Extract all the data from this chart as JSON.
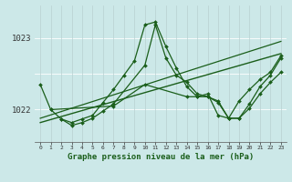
{
  "title": "Graphe pression niveau de la mer (hPa)",
  "bg_color": "#cce8e8",
  "line_color": "#1a5e1a",
  "grid_color": "#ffffff",
  "subgrid_color": "#c8d8d8",
  "ylim": [
    1021.55,
    1023.45
  ],
  "yticks": [
    1022,
    1023
  ],
  "xlim": [
    -0.5,
    23.5
  ],
  "xticks": [
    0,
    1,
    2,
    3,
    4,
    5,
    6,
    7,
    8,
    9,
    10,
    11,
    12,
    13,
    14,
    15,
    16,
    17,
    18,
    19,
    20,
    21,
    22,
    23
  ],
  "series": [
    {
      "x": [
        0,
        1,
        2,
        3,
        4,
        5,
        6,
        7,
        8,
        9,
        10,
        11,
        12,
        13,
        14,
        15,
        16,
        17,
        18,
        19,
        20,
        21,
        22,
        23
      ],
      "y": [
        1022.35,
        1022.0,
        1021.87,
        1021.82,
        1021.87,
        1021.92,
        1022.1,
        1022.28,
        1022.48,
        1022.68,
        1023.18,
        1023.22,
        1022.88,
        1022.58,
        1022.32,
        1022.18,
        1022.22,
        1021.92,
        1021.88,
        1022.12,
        1022.28,
        1022.42,
        1022.52,
        1022.75
      ],
      "marker": "D",
      "ms": 2.0,
      "lw": 0.9
    },
    {
      "x": [
        2,
        3,
        4,
        5,
        6,
        7,
        10,
        11,
        12,
        13,
        14,
        15,
        16,
        17,
        18,
        19,
        20,
        21,
        22,
        23
      ],
      "y": [
        1021.87,
        1021.78,
        1021.82,
        1021.88,
        1021.98,
        1022.08,
        1022.62,
        1023.18,
        1022.72,
        1022.48,
        1022.38,
        1022.22,
        1022.18,
        1022.12,
        1021.88,
        1021.88,
        1022.08,
        1022.32,
        1022.48,
        1022.72
      ],
      "marker": "D",
      "ms": 2.0,
      "lw": 0.9
    },
    {
      "x": [
        0,
        23
      ],
      "y": [
        1021.82,
        1022.78
      ],
      "marker": null,
      "ms": 0,
      "lw": 1.0
    },
    {
      "x": [
        0,
        23
      ],
      "y": [
        1021.88,
        1022.95
      ],
      "marker": null,
      "ms": 0,
      "lw": 0.9
    },
    {
      "x": [
        1,
        7,
        10,
        14,
        15,
        16,
        17,
        18,
        19,
        20,
        21,
        22,
        23
      ],
      "y": [
        1022.0,
        1022.05,
        1022.35,
        1022.18,
        1022.18,
        1022.18,
        1022.1,
        1021.88,
        1021.88,
        1022.02,
        1022.22,
        1022.38,
        1022.52
      ],
      "marker": "D",
      "ms": 2.0,
      "lw": 0.9
    }
  ]
}
